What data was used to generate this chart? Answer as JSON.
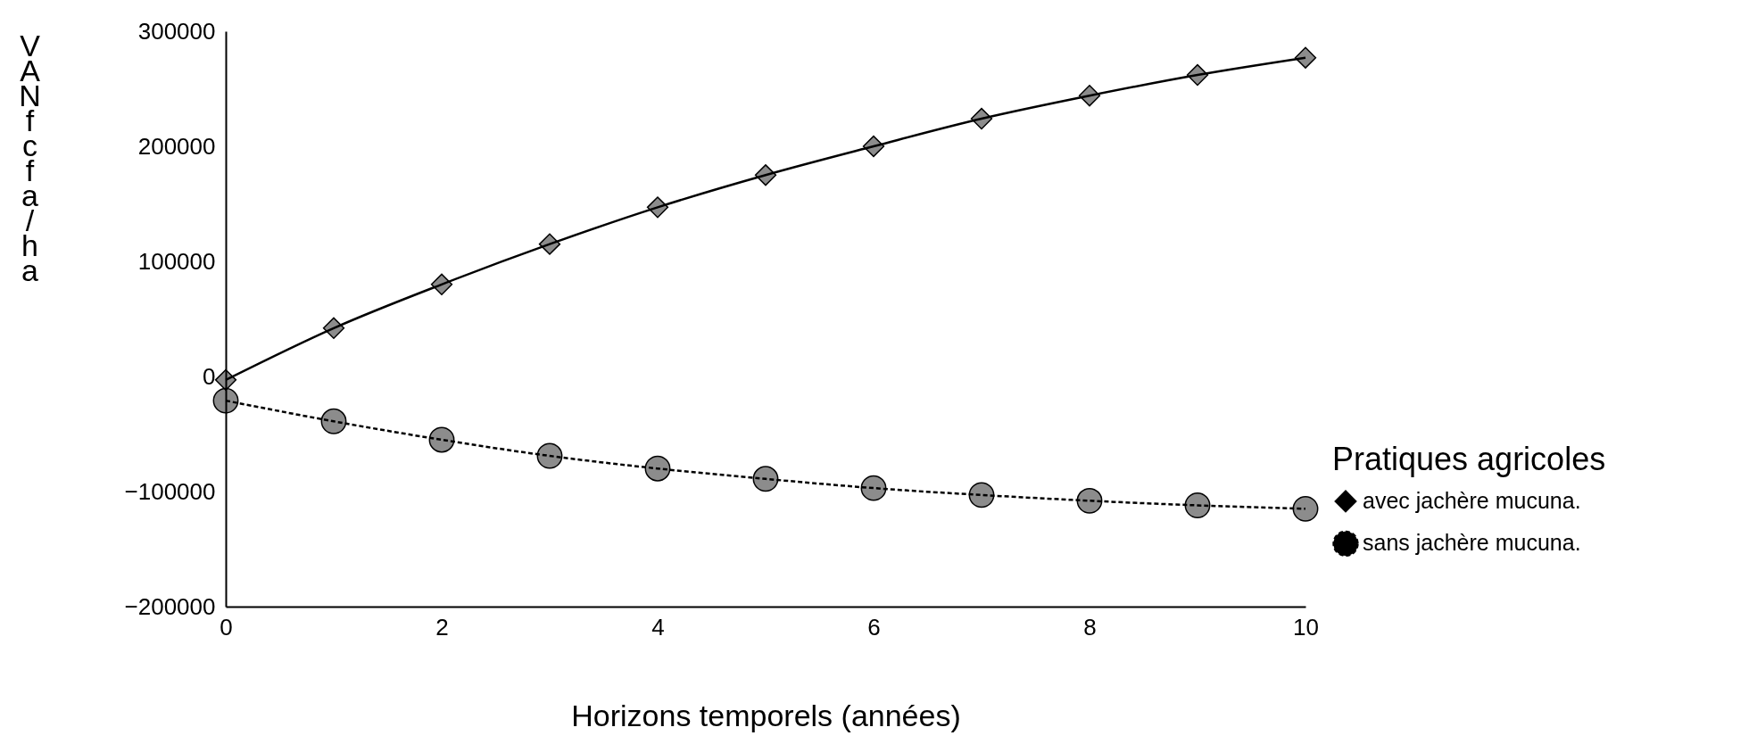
{
  "chart_data": {
    "type": "line",
    "xlabel": "Horizons temporels (années)",
    "ylabel": "VAN fcfa/ha",
    "legend_title": "Pratiques agricoles",
    "x": [
      0,
      1,
      2,
      3,
      4,
      5,
      6,
      7,
      8,
      9,
      10
    ],
    "xlim": [
      0,
      10
    ],
    "xticks": [
      0,
      2,
      4,
      6,
      8,
      10
    ],
    "ylim": [
      -200000,
      300000
    ],
    "yticks": [
      -200000,
      -100000,
      0,
      100000,
      200000,
      300000
    ],
    "grid": false,
    "legend": "right",
    "series": [
      {
        "name": "avec jachère mucuna.",
        "color": "#000000",
        "marker": "diamond",
        "line_style": "solid",
        "values": [
          -3000,
          42000,
          80000,
          115000,
          147000,
          175000,
          200000,
          224000,
          244000,
          262000,
          277000
        ]
      },
      {
        "name": "sans jachère mucuna.",
        "color": "#000000",
        "marker": "circle",
        "line_style": "dashed",
        "values": [
          -21000,
          -39000,
          -55000,
          -69000,
          -80000,
          -89000,
          -97000,
          -103000,
          -108000,
          -112000,
          -115000
        ]
      }
    ]
  }
}
